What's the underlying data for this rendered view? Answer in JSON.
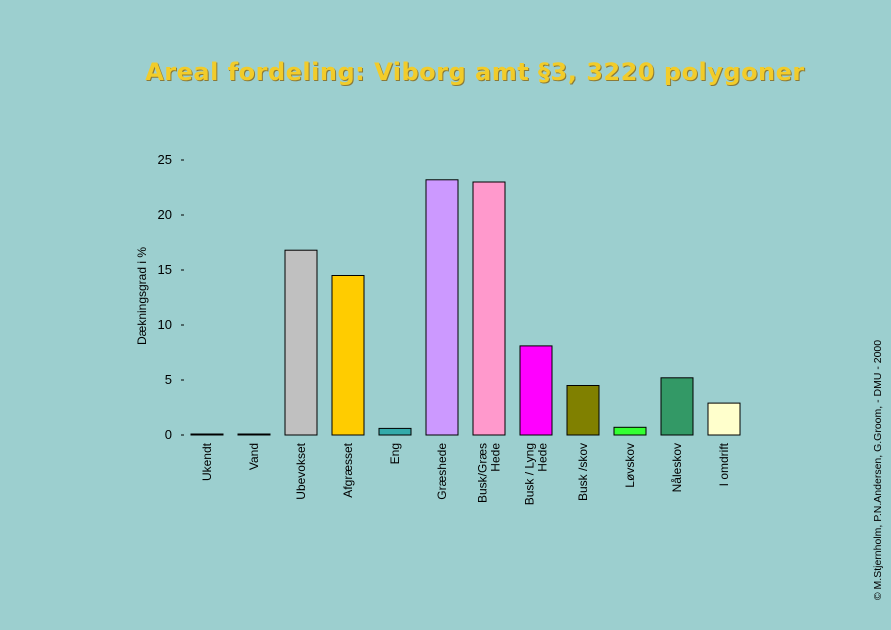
{
  "chart_data": {
    "type": "bar",
    "title": "Areal fordeling: Viborg amt §3, 3220 polygoner",
    "ylabel": "Dækningsgrad i %",
    "xlabel": "",
    "ylim": [
      0,
      25
    ],
    "yticks": [
      "0",
      "5",
      "10",
      "15",
      "20",
      "25"
    ],
    "categories": [
      "Ukendt",
      "Vand",
      "Ubevokset",
      "Afgræsset",
      "Eng",
      "Græshede",
      "Busk/Græs Hede",
      "Busk / Lyng Hede",
      "Busk /skov",
      "Løvskov",
      "Nåleskov",
      "I omdrift"
    ],
    "values": [
      0.05,
      0.05,
      16.8,
      14.5,
      0.6,
      23.2,
      23.0,
      8.1,
      4.5,
      0.7,
      5.2,
      2.9
    ],
    "colors": [
      "#2a2a2a",
      "#2a2a2a",
      "#c0c0c0",
      "#ffcc00",
      "#33aaaa",
      "#cc99ff",
      "#ff99cc",
      "#ff00ff",
      "#808000",
      "#33ff33",
      "#339966",
      "#ffffcc"
    ],
    "credit": "© M.Stjernholm, P.N.Andersen, G.Groom, - DMU - 2000"
  }
}
